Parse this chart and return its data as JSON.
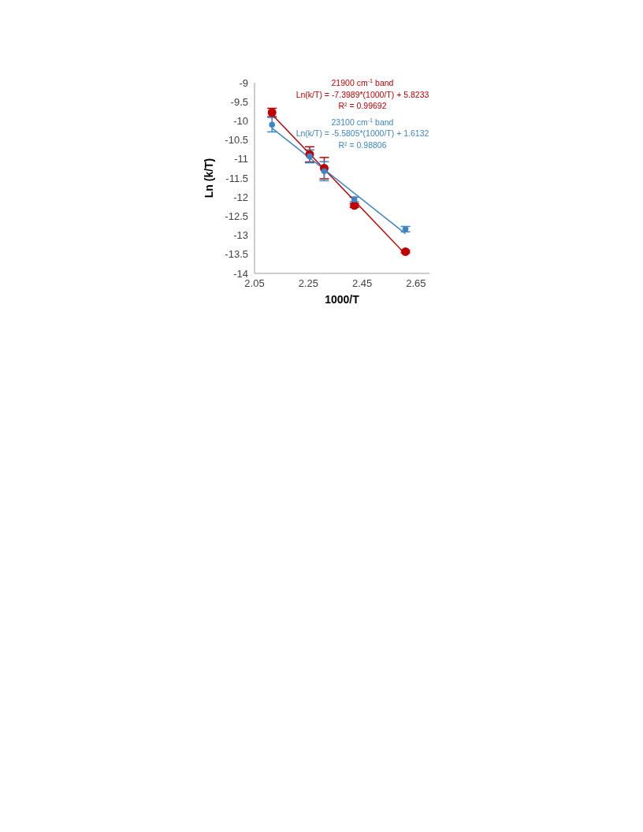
{
  "chart_data": {
    "type": "scatter",
    "xlabel": "1000/T",
    "ylabel": "Ln (k/T)",
    "xlim": [
      2.05,
      2.7
    ],
    "xticks": [
      2.05,
      2.25,
      2.45,
      2.65
    ],
    "ylim": [
      -14,
      -9
    ],
    "yticks": [
      -14,
      -13.5,
      -13,
      -12.5,
      -12,
      -11.5,
      -11,
      -10.5,
      -10,
      -9.5,
      -9
    ],
    "grid": false,
    "legend": false,
    "series": [
      {
        "marker": "circle",
        "color": "#c00000",
        "x": [
          2.115,
          2.255,
          2.309,
          2.421,
          2.611
        ],
        "values": [
          -9.78,
          -10.88,
          -11.24,
          -12.22,
          -13.43
        ],
        "errors": [
          0.11,
          0.2,
          0.28,
          0.05,
          0.03
        ]
      },
      {
        "marker": "circle",
        "color": "#3d85c6",
        "x": [
          2.115,
          2.255,
          2.309,
          2.421,
          2.611
        ],
        "values": [
          -10.1,
          -10.93,
          -11.32,
          -12.06,
          -12.84
        ],
        "errors": [
          0.19,
          0.17,
          0.25,
          0.06,
          0.07
        ]
      },
      {
        "type": "line",
        "marker": "none",
        "color": "#c00000",
        "line_style": "solid",
        "x": [
          2.115,
          2.611
        ],
        "values": [
          -9.83,
          -13.5
        ]
      },
      {
        "type": "line",
        "marker": "none",
        "color": "#3d85c6",
        "line_style": "solid",
        "x": [
          2.115,
          2.611
        ],
        "values": [
          -10.19,
          -12.96
        ]
      }
    ],
    "annotations": [
      "21900 cm$^{-1}$ band",
      "Ln(k/T) = -7.3989*(1000/T) + 5.8233",
      "R² = 0.99692",
      "23100 cm$^{-1}$ band",
      "Ln(k/T) = -5.5805*(1000/T) + 1.6132",
      "R² = 0.98806"
    ]
  }
}
